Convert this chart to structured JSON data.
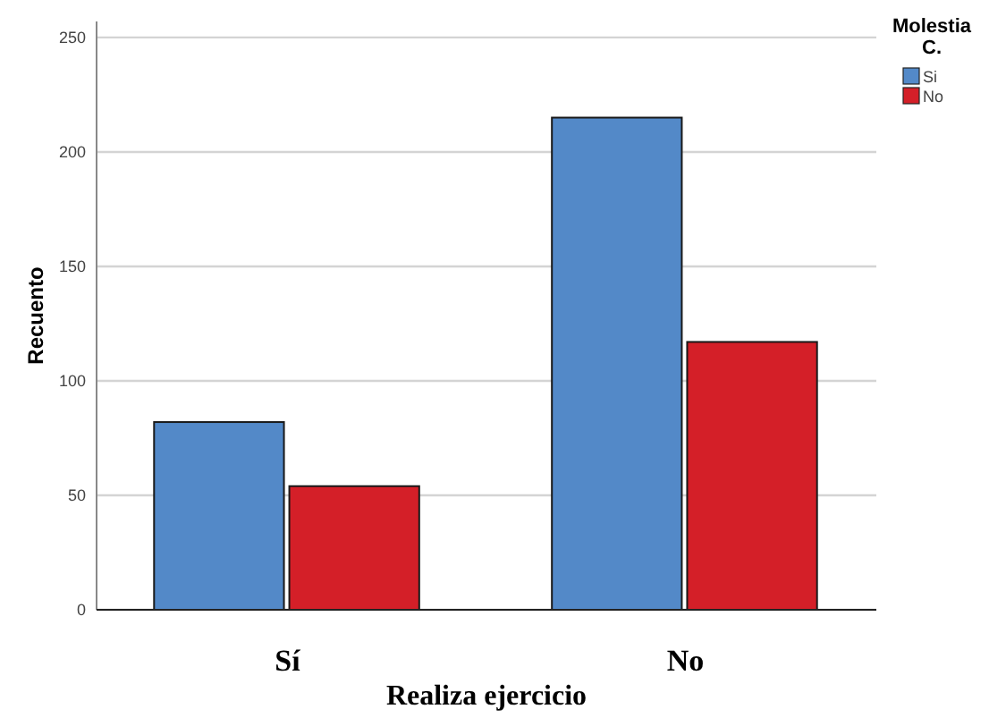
{
  "chart_data": {
    "type": "bar",
    "xlabel": "Realiza ejercicio",
    "ylabel": "Recuento",
    "legend_title": "Molestia C.",
    "categories": [
      "Sí",
      "No"
    ],
    "series": [
      {
        "name": "Si",
        "color": "#5389c8",
        "values": [
          82,
          215
        ]
      },
      {
        "name": "No",
        "color": "#d41f28",
        "values": [
          54,
          117
        ]
      }
    ],
    "ylim": [
      0,
      257
    ],
    "yticks": [
      0,
      50,
      100,
      150,
      200,
      250
    ],
    "grid": "y",
    "legend": "top right"
  }
}
